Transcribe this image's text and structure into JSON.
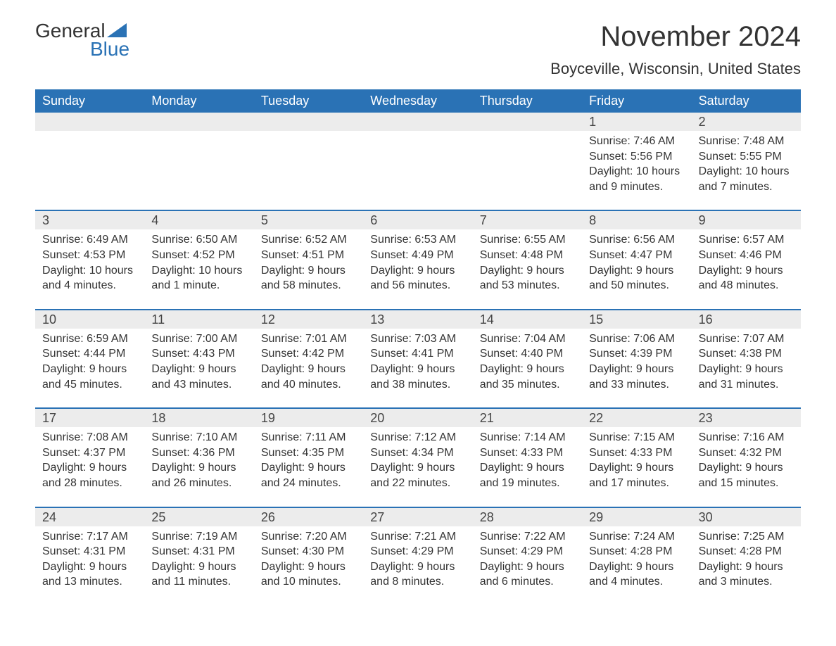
{
  "logo": {
    "word1": "General",
    "word2": "Blue",
    "accent_color": "#2a72b5"
  },
  "title": "November 2024",
  "location": "Boyceville, Wisconsin, United States",
  "colors": {
    "header_bg": "#2a72b5",
    "header_text": "#ffffff",
    "daynum_bg": "#ececec",
    "week_border": "#2a72b5",
    "body_text": "#333333",
    "page_bg": "#ffffff"
  },
  "font": {
    "family": "Arial",
    "weekday_size": 18,
    "title_size": 40,
    "location_size": 22,
    "body_size": 16
  },
  "weekdays": [
    "Sunday",
    "Monday",
    "Tuesday",
    "Wednesday",
    "Thursday",
    "Friday",
    "Saturday"
  ],
  "labels": {
    "sunrise": "Sunrise:",
    "sunset": "Sunset:",
    "daylight": "Daylight:"
  },
  "weeks": [
    [
      null,
      null,
      null,
      null,
      null,
      {
        "n": "1",
        "sr": "7:46 AM",
        "ss": "5:56 PM",
        "dl": "10 hours and 9 minutes."
      },
      {
        "n": "2",
        "sr": "7:48 AM",
        "ss": "5:55 PM",
        "dl": "10 hours and 7 minutes."
      }
    ],
    [
      {
        "n": "3",
        "sr": "6:49 AM",
        "ss": "4:53 PM",
        "dl": "10 hours and 4 minutes."
      },
      {
        "n": "4",
        "sr": "6:50 AM",
        "ss": "4:52 PM",
        "dl": "10 hours and 1 minute."
      },
      {
        "n": "5",
        "sr": "6:52 AM",
        "ss": "4:51 PM",
        "dl": "9 hours and 58 minutes."
      },
      {
        "n": "6",
        "sr": "6:53 AM",
        "ss": "4:49 PM",
        "dl": "9 hours and 56 minutes."
      },
      {
        "n": "7",
        "sr": "6:55 AM",
        "ss": "4:48 PM",
        "dl": "9 hours and 53 minutes."
      },
      {
        "n": "8",
        "sr": "6:56 AM",
        "ss": "4:47 PM",
        "dl": "9 hours and 50 minutes."
      },
      {
        "n": "9",
        "sr": "6:57 AM",
        "ss": "4:46 PM",
        "dl": "9 hours and 48 minutes."
      }
    ],
    [
      {
        "n": "10",
        "sr": "6:59 AM",
        "ss": "4:44 PM",
        "dl": "9 hours and 45 minutes."
      },
      {
        "n": "11",
        "sr": "7:00 AM",
        "ss": "4:43 PM",
        "dl": "9 hours and 43 minutes."
      },
      {
        "n": "12",
        "sr": "7:01 AM",
        "ss": "4:42 PM",
        "dl": "9 hours and 40 minutes."
      },
      {
        "n": "13",
        "sr": "7:03 AM",
        "ss": "4:41 PM",
        "dl": "9 hours and 38 minutes."
      },
      {
        "n": "14",
        "sr": "7:04 AM",
        "ss": "4:40 PM",
        "dl": "9 hours and 35 minutes."
      },
      {
        "n": "15",
        "sr": "7:06 AM",
        "ss": "4:39 PM",
        "dl": "9 hours and 33 minutes."
      },
      {
        "n": "16",
        "sr": "7:07 AM",
        "ss": "4:38 PM",
        "dl": "9 hours and 31 minutes."
      }
    ],
    [
      {
        "n": "17",
        "sr": "7:08 AM",
        "ss": "4:37 PM",
        "dl": "9 hours and 28 minutes."
      },
      {
        "n": "18",
        "sr": "7:10 AM",
        "ss": "4:36 PM",
        "dl": "9 hours and 26 minutes."
      },
      {
        "n": "19",
        "sr": "7:11 AM",
        "ss": "4:35 PM",
        "dl": "9 hours and 24 minutes."
      },
      {
        "n": "20",
        "sr": "7:12 AM",
        "ss": "4:34 PM",
        "dl": "9 hours and 22 minutes."
      },
      {
        "n": "21",
        "sr": "7:14 AM",
        "ss": "4:33 PM",
        "dl": "9 hours and 19 minutes."
      },
      {
        "n": "22",
        "sr": "7:15 AM",
        "ss": "4:33 PM",
        "dl": "9 hours and 17 minutes."
      },
      {
        "n": "23",
        "sr": "7:16 AM",
        "ss": "4:32 PM",
        "dl": "9 hours and 15 minutes."
      }
    ],
    [
      {
        "n": "24",
        "sr": "7:17 AM",
        "ss": "4:31 PM",
        "dl": "9 hours and 13 minutes."
      },
      {
        "n": "25",
        "sr": "7:19 AM",
        "ss": "4:31 PM",
        "dl": "9 hours and 11 minutes."
      },
      {
        "n": "26",
        "sr": "7:20 AM",
        "ss": "4:30 PM",
        "dl": "9 hours and 10 minutes."
      },
      {
        "n": "27",
        "sr": "7:21 AM",
        "ss": "4:29 PM",
        "dl": "9 hours and 8 minutes."
      },
      {
        "n": "28",
        "sr": "7:22 AM",
        "ss": "4:29 PM",
        "dl": "9 hours and 6 minutes."
      },
      {
        "n": "29",
        "sr": "7:24 AM",
        "ss": "4:28 PM",
        "dl": "9 hours and 4 minutes."
      },
      {
        "n": "30",
        "sr": "7:25 AM",
        "ss": "4:28 PM",
        "dl": "9 hours and 3 minutes."
      }
    ]
  ]
}
